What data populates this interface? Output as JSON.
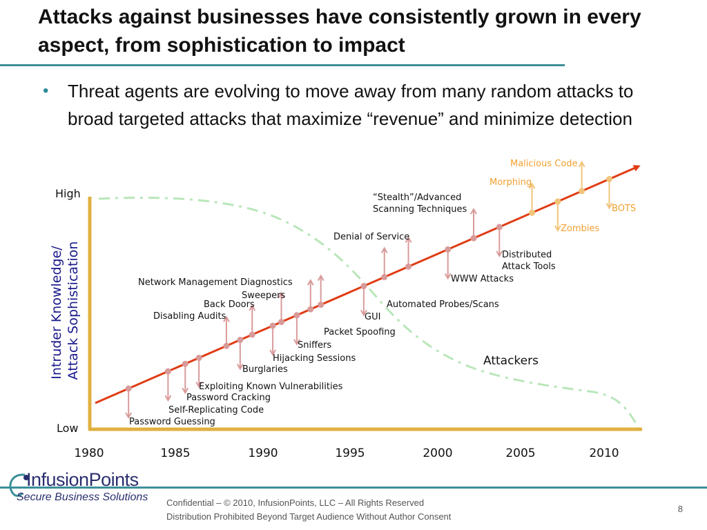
{
  "slide": {
    "title": "Attacks against businesses have consistently grown in every aspect, from sophistication to impact",
    "bullet": "Threat agents are evolving to move away from many random attacks to broad targeted attacks that maximize “revenue” and minimize detection",
    "page_number": "8"
  },
  "footer": {
    "line1": "Confidential – © 2010, InfusionPoints, LLC – All Rights Reserved",
    "line2": "Distribution Prohibited Beyond Target Audience Without Author Consent"
  },
  "logo": {
    "name": "InfusionPoints",
    "tagline": "Secure Business Solutions"
  },
  "diagram": {
    "y_axis_label": [
      "Intruder Knowledge/",
      "Attack Sophistication"
    ],
    "y_high": "High",
    "y_low": "Low",
    "x_ticks": [
      "1980",
      "1985",
      "1990",
      "1995",
      "2000",
      "2005",
      "2010"
    ],
    "attackers_label": "Attackers",
    "colors": {
      "trend_line": "#e03c14",
      "attackers_curve": "#b9e6b9",
      "axis": "#e0b040",
      "marker_pink": "#d99a9a",
      "marker_orange": "#f2c47a",
      "label_dark": "#111111",
      "label_orange": "#f0a030",
      "y_axis_text": "#1a1a8c"
    },
    "events": [
      {
        "label": "Password Guessing",
        "year": 1982.3,
        "dir": "down",
        "tone": "dark"
      },
      {
        "label": "Self-Replicating Code",
        "year": 1984.6,
        "dir": "down",
        "tone": "dark"
      },
      {
        "label": "Password Cracking",
        "year": 1985.6,
        "dir": "down",
        "tone": "dark"
      },
      {
        "label": "Exploiting Known Vulnerabilities",
        "year": 1986.4,
        "dir": "down",
        "tone": "dark"
      },
      {
        "label": "Disabling Audits",
        "year": 1988.0,
        "dir": "up",
        "tone": "dark"
      },
      {
        "label": "Burglaries",
        "year": 1988.8,
        "dir": "down",
        "tone": "dark"
      },
      {
        "label": "Back Doors",
        "year": 1989.5,
        "dir": "up",
        "tone": "dark"
      },
      {
        "label": "Hijacking Sessions",
        "year": 1990.7,
        "dir": "down",
        "tone": "dark"
      },
      {
        "label": "Sweepers",
        "year": 1991.2,
        "dir": "up",
        "tone": "dark"
      },
      {
        "label": "Sniffers",
        "year": 1992.1,
        "dir": "down",
        "tone": "dark"
      },
      {
        "label": "Network Management Diagnostics",
        "year": 1992.9,
        "dir": "up",
        "tone": "dark"
      },
      {
        "label": "Packet Spoofing",
        "year": 1993.5,
        "dir": "up",
        "tone": "dark"
      },
      {
        "label": "GUI",
        "year": 1996.0,
        "dir": "down",
        "tone": "dark"
      },
      {
        "label": "Automated Probes/Scans",
        "year": 1997.2,
        "dir": "up",
        "tone": "dark"
      },
      {
        "label": "Denial of Service",
        "year": 1998.6,
        "dir": "up",
        "tone": "dark"
      },
      {
        "label": "WWW Attacks",
        "year": 2000.9,
        "dir": "down",
        "tone": "dark"
      },
      {
        "label": "“Stealth”/Advanced Scanning Techniques",
        "year": 2002.4,
        "dir": "up",
        "tone": "dark"
      },
      {
        "label": "Distributed Attack Tools",
        "year": 2003.9,
        "dir": "down",
        "tone": "dark"
      },
      {
        "label": "Morphing",
        "year": 2005.8,
        "dir": "up",
        "tone": "orange"
      },
      {
        "label": "Zombies",
        "year": 2007.3,
        "dir": "down",
        "tone": "orange"
      },
      {
        "label": "Malicious Code",
        "year": 2008.7,
        "dir": "up",
        "tone": "orange"
      },
      {
        "label": "BOTS",
        "year": 2010.3,
        "dir": "down",
        "tone": "orange"
      }
    ]
  }
}
